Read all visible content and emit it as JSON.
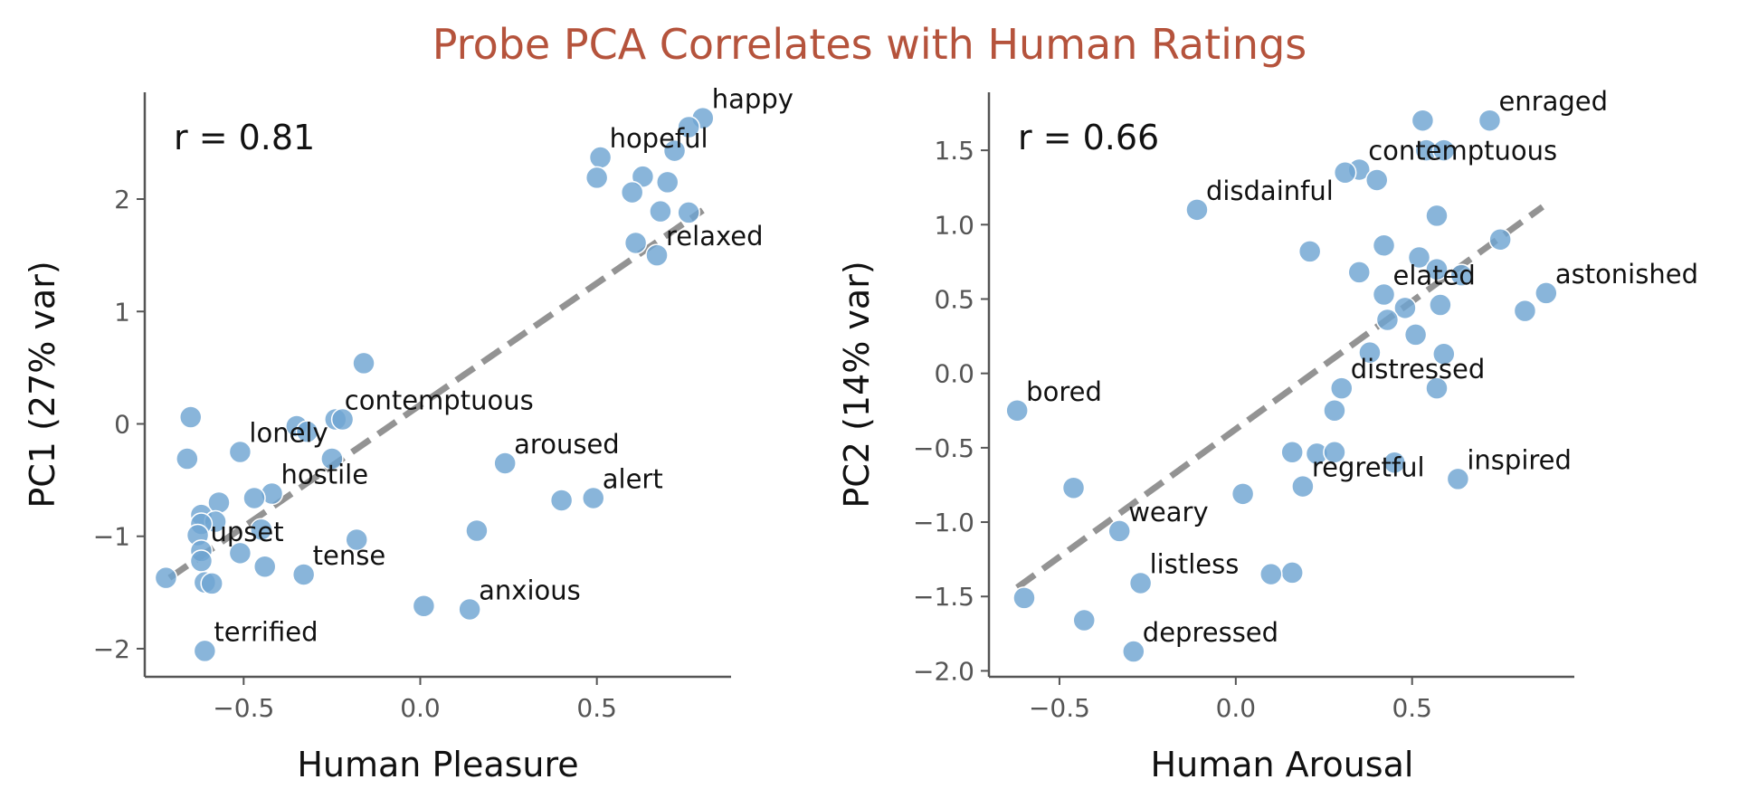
{
  "title": "Probe PCA Correlates with Human Ratings",
  "colors": {
    "title": "#B5533C",
    "point": "#6FA5D2",
    "trend": "#808080"
  },
  "chart_data": [
    {
      "type": "scatter",
      "xlabel": "Human Pleasure",
      "ylabel": "PC1 (27% var)",
      "annotation": "r = 0.81",
      "xlim": [
        -0.78,
        0.88
      ],
      "ylim": [
        -2.25,
        2.95
      ],
      "xticks": [
        -0.5,
        0.0,
        0.5
      ],
      "xtick_labels": [
        "−0.5",
        "0.0",
        "0.5"
      ],
      "yticks": [
        -2,
        -1,
        0,
        1,
        2
      ],
      "ytick_labels": [
        "−2",
        "−1",
        "0",
        "1",
        "2"
      ],
      "grid": false,
      "trendline": {
        "x": [
          -0.71,
          0.8
        ],
        "y": [
          -1.37,
          1.9
        ]
      },
      "points": [
        {
          "x": 0.8,
          "y": 2.72,
          "label": "happy"
        },
        {
          "x": 0.76,
          "y": 2.64
        },
        {
          "x": 0.72,
          "y": 2.43
        },
        {
          "x": 0.51,
          "y": 2.37,
          "label": "hopeful"
        },
        {
          "x": 0.5,
          "y": 2.19
        },
        {
          "x": 0.63,
          "y": 2.2
        },
        {
          "x": 0.7,
          "y": 2.15
        },
        {
          "x": 0.6,
          "y": 2.06
        },
        {
          "x": 0.68,
          "y": 1.89
        },
        {
          "x": 0.76,
          "y": 1.88
        },
        {
          "x": 0.61,
          "y": 1.61
        },
        {
          "x": 0.67,
          "y": 1.5,
          "label": "relaxed"
        },
        {
          "x": -0.16,
          "y": 0.54
        },
        {
          "x": -0.65,
          "y": 0.06
        },
        {
          "x": -0.24,
          "y": 0.04,
          "label": "contemptuous"
        },
        {
          "x": -0.22,
          "y": 0.04
        },
        {
          "x": -0.35,
          "y": -0.02
        },
        {
          "x": -0.32,
          "y": -0.07
        },
        {
          "x": -0.51,
          "y": -0.25,
          "label": "lonely"
        },
        {
          "x": -0.66,
          "y": -0.31
        },
        {
          "x": -0.25,
          "y": -0.31
        },
        {
          "x": 0.24,
          "y": -0.35,
          "label": "aroused"
        },
        {
          "x": -0.42,
          "y": -0.62,
          "label": "hostile"
        },
        {
          "x": -0.47,
          "y": -0.66
        },
        {
          "x": -0.57,
          "y": -0.7
        },
        {
          "x": 0.4,
          "y": -0.68
        },
        {
          "x": 0.49,
          "y": -0.66,
          "label": "alert"
        },
        {
          "x": -0.62,
          "y": -0.81
        },
        {
          "x": -0.58,
          "y": -0.87
        },
        {
          "x": -0.62,
          "y": -0.89
        },
        {
          "x": -0.45,
          "y": -0.94
        },
        {
          "x": -0.63,
          "y": -0.99
        },
        {
          "x": 0.16,
          "y": -0.95
        },
        {
          "x": -0.18,
          "y": -1.03
        },
        {
          "x": -0.62,
          "y": -1.13,
          "label": "upset"
        },
        {
          "x": -0.51,
          "y": -1.15
        },
        {
          "x": -0.62,
          "y": -1.22
        },
        {
          "x": -0.44,
          "y": -1.27
        },
        {
          "x": -0.33,
          "y": -1.34,
          "label": "tense"
        },
        {
          "x": -0.72,
          "y": -1.37
        },
        {
          "x": -0.61,
          "y": -1.41
        },
        {
          "x": -0.59,
          "y": -1.42
        },
        {
          "x": 0.01,
          "y": -1.62
        },
        {
          "x": 0.14,
          "y": -1.65,
          "label": "anxious"
        },
        {
          "x": -0.61,
          "y": -2.02,
          "label": "terrified"
        }
      ]
    },
    {
      "type": "scatter",
      "xlabel": "Human Arousal",
      "ylabel": "PC2 (14% var)",
      "annotation": "r = 0.66",
      "xlim": [
        -0.7,
        0.96
      ],
      "ylim": [
        -2.04,
        1.89
      ],
      "xticks": [
        -0.5,
        0.0,
        0.5
      ],
      "xtick_labels": [
        "−0.5",
        "0.0",
        "0.5"
      ],
      "yticks": [
        -2.0,
        -1.5,
        -1.0,
        -0.5,
        0.0,
        0.5,
        1.0,
        1.5
      ],
      "ytick_labels": [
        "−2.0",
        "−1.5",
        "−1.0",
        "−0.5",
        "0.0",
        "0.5",
        "1.0",
        "1.5"
      ],
      "grid": false,
      "trendline": {
        "x": [
          -0.62,
          0.87
        ],
        "y": [
          -1.44,
          1.12
        ]
      },
      "points": [
        {
          "x": 0.72,
          "y": 1.7,
          "label": "enraged"
        },
        {
          "x": 0.53,
          "y": 1.7
        },
        {
          "x": 0.54,
          "y": 1.5
        },
        {
          "x": 0.59,
          "y": 1.5
        },
        {
          "x": 0.35,
          "y": 1.37,
          "label": "contemptuous"
        },
        {
          "x": 0.31,
          "y": 1.35
        },
        {
          "x": 0.4,
          "y": 1.3
        },
        {
          "x": -0.11,
          "y": 1.1,
          "label": "disdainful"
        },
        {
          "x": 0.57,
          "y": 1.06
        },
        {
          "x": 0.75,
          "y": 0.9
        },
        {
          "x": 0.42,
          "y": 0.86
        },
        {
          "x": 0.21,
          "y": 0.82
        },
        {
          "x": 0.52,
          "y": 0.78
        },
        {
          "x": 0.57,
          "y": 0.7
        },
        {
          "x": 0.35,
          "y": 0.68
        },
        {
          "x": 0.64,
          "y": 0.66
        },
        {
          "x": 0.88,
          "y": 0.54,
          "label": "astonished"
        },
        {
          "x": 0.42,
          "y": 0.53,
          "label": "elated"
        },
        {
          "x": 0.58,
          "y": 0.46
        },
        {
          "x": 0.48,
          "y": 0.44
        },
        {
          "x": 0.82,
          "y": 0.42
        },
        {
          "x": 0.43,
          "y": 0.36
        },
        {
          "x": 0.51,
          "y": 0.26
        },
        {
          "x": 0.38,
          "y": 0.14
        },
        {
          "x": 0.59,
          "y": 0.13
        },
        {
          "x": 0.3,
          "y": -0.1,
          "label": "distressed"
        },
        {
          "x": 0.57,
          "y": -0.1
        },
        {
          "x": -0.62,
          "y": -0.25,
          "label": "bored"
        },
        {
          "x": 0.28,
          "y": -0.25
        },
        {
          "x": 0.16,
          "y": -0.53
        },
        {
          "x": 0.23,
          "y": -0.54
        },
        {
          "x": 0.28,
          "y": -0.53
        },
        {
          "x": 0.45,
          "y": -0.6
        },
        {
          "x": 0.63,
          "y": -0.71,
          "label": "inspired"
        },
        {
          "x": -0.46,
          "y": -0.77
        },
        {
          "x": 0.19,
          "y": -0.76,
          "label": "regretful"
        },
        {
          "x": 0.02,
          "y": -0.81
        },
        {
          "x": -0.33,
          "y": -1.06,
          "label": "weary"
        },
        {
          "x": 0.16,
          "y": -1.34
        },
        {
          "x": 0.1,
          "y": -1.35
        },
        {
          "x": -0.27,
          "y": -1.41,
          "label": "listless"
        },
        {
          "x": -0.6,
          "y": -1.51
        },
        {
          "x": -0.43,
          "y": -1.66
        },
        {
          "x": -0.29,
          "y": -1.87,
          "label": "depressed"
        }
      ]
    }
  ]
}
